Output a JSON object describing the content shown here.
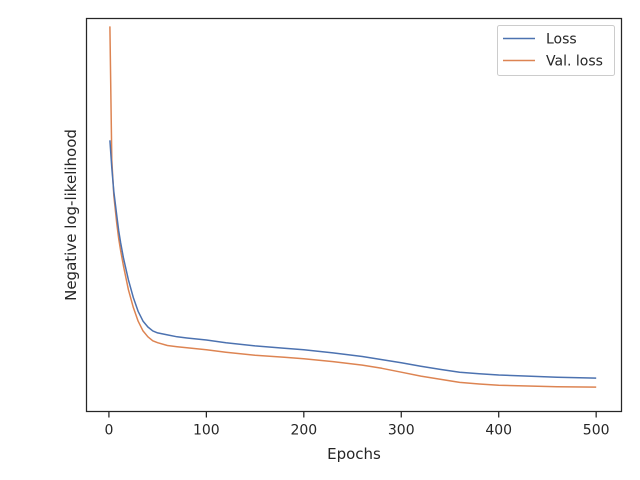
{
  "chart_data": {
    "type": "line",
    "xlabel": "Epochs",
    "ylabel": "Negative log-likelihood",
    "xlim": [
      -23,
      526
    ],
    "ylim": [
      0,
      1
    ],
    "xticks": [
      0,
      100,
      200,
      300,
      400,
      500
    ],
    "xtick_labels": [
      "0",
      "100",
      "200",
      "300",
      "400",
      "500"
    ],
    "yticks_visible": false,
    "grid": false,
    "legend_position": "top-right",
    "series": [
      {
        "name": "Loss",
        "color": "#4c72b0",
        "x": [
          1,
          3,
          5,
          8,
          10,
          12,
          15,
          20,
          25,
          30,
          35,
          40,
          45,
          50,
          60,
          70,
          80,
          100,
          120,
          150,
          180,
          200,
          230,
          260,
          280,
          300,
          320,
          340,
          360,
          380,
          400,
          430,
          460,
          500
        ],
        "y": [
          0.69,
          0.62,
          0.56,
          0.5,
          0.46,
          0.43,
          0.39,
          0.335,
          0.29,
          0.255,
          0.23,
          0.215,
          0.205,
          0.2,
          0.195,
          0.19,
          0.187,
          0.182,
          0.175,
          0.167,
          0.161,
          0.157,
          0.149,
          0.14,
          0.132,
          0.124,
          0.115,
          0.107,
          0.1,
          0.096,
          0.093,
          0.09,
          0.087,
          0.085
        ]
      },
      {
        "name": "Val. loss",
        "color": "#dd8452",
        "x": [
          1,
          2,
          3,
          5,
          8,
          10,
          12,
          15,
          20,
          25,
          30,
          35,
          40,
          45,
          50,
          60,
          70,
          80,
          100,
          120,
          150,
          180,
          200,
          230,
          260,
          280,
          300,
          320,
          340,
          360,
          380,
          400,
          430,
          460,
          500
        ],
        "y": [
          0.98,
          0.8,
          0.64,
          0.55,
          0.48,
          0.44,
          0.41,
          0.37,
          0.31,
          0.265,
          0.23,
          0.205,
          0.19,
          0.18,
          0.175,
          0.168,
          0.165,
          0.162,
          0.157,
          0.151,
          0.143,
          0.138,
          0.134,
          0.127,
          0.118,
          0.11,
          0.1,
          0.09,
          0.082,
          0.074,
          0.07,
          0.067,
          0.065,
          0.063,
          0.062
        ]
      }
    ]
  }
}
